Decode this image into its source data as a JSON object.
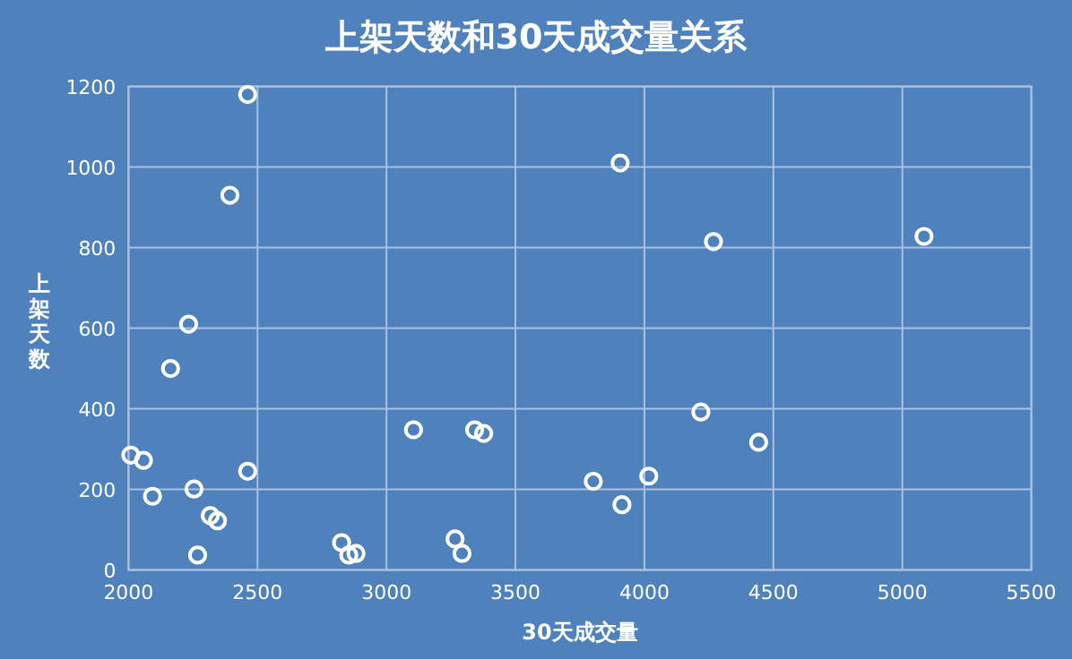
{
  "chart_data": {
    "type": "scatter",
    "title": "上架天数和30天成交量关系",
    "xlabel": "30天成交量",
    "ylabel": "上架天数",
    "xlim": [
      2000,
      5500
    ],
    "xticks": [
      2000,
      2500,
      3000,
      3500,
      4000,
      4500,
      5000,
      5500
    ],
    "ylim": [
      0,
      1200
    ],
    "yticks": [
      0,
      200,
      400,
      600,
      800,
      1000,
      1200
    ],
    "grid": true,
    "marker": "circle",
    "series": [
      {
        "color": "#ffffff",
        "x": [
          2462,
          2393,
          2233,
          2163,
          2009,
          2058,
          2093,
          2254,
          2317,
          2345,
          2268,
          2462,
          2826,
          2854,
          2882,
          3105,
          3266,
          3293,
          3342,
          3377,
          3802,
          3906,
          3913,
          4017,
          4219,
          4268,
          4443,
          5084
        ],
        "values": [
          1180,
          930,
          610,
          500,
          285,
          272,
          183,
          201,
          135,
          122,
          37,
          245,
          68,
          37,
          41,
          348,
          77,
          41,
          348,
          339,
          220,
          1010,
          162,
          233,
          392,
          815,
          317,
          828
        ]
      }
    ]
  }
}
